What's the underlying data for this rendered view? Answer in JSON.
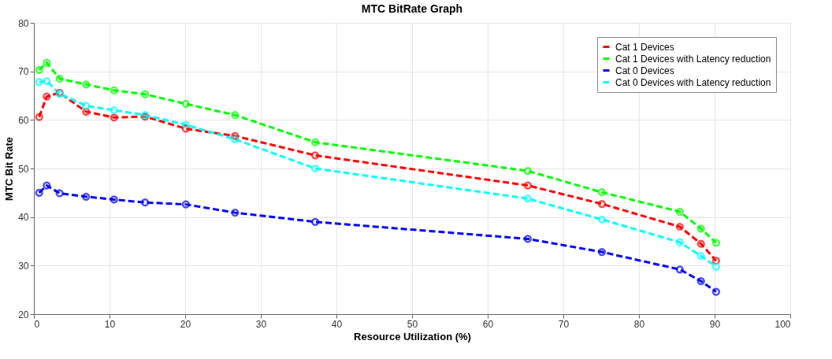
{
  "chart_data": {
    "type": "line",
    "title": "MTC BitRate Graph",
    "xlabel": "Resource Utilization (%)",
    "ylabel": "MTC Bit Rate",
    "x": [
      0.7,
      1.7,
      3.4,
      6.9,
      10.6,
      14.7,
      20.1,
      26.6,
      37.2,
      65.3,
      75.1,
      85.4,
      88.2,
      90.2
    ],
    "series": [
      {
        "name": "Cat 1 Devices",
        "color": "#ff0000",
        "values": [
          60.6,
          64.8,
          65.6,
          61.7,
          60.5,
          60.7,
          58.2,
          56.7,
          52.7,
          46.5,
          42.7,
          38.0,
          34.5,
          31.0
        ]
      },
      {
        "name": "Cat 1 Devices with Latency reduction",
        "color": "#00ff00",
        "values": [
          70.3,
          71.8,
          68.5,
          67.3,
          66.1,
          65.3,
          63.3,
          61.0,
          55.4,
          49.5,
          45.1,
          41.1,
          37.6,
          34.7
        ]
      },
      {
        "name": "Cat 0 Devices",
        "color": "#0000ff",
        "values": [
          45.0,
          46.5,
          44.9,
          44.2,
          43.6,
          43.0,
          42.6,
          40.9,
          39.0,
          35.5,
          32.8,
          29.2,
          26.8,
          24.6
        ]
      },
      {
        "name": "Cat 0 Devices with Latency reduction",
        "color": "#00ffff",
        "values": [
          67.8,
          68.0,
          65.4,
          62.9,
          62.0,
          61.0,
          59.0,
          56.0,
          50.0,
          43.8,
          39.5,
          34.8,
          32.0,
          29.8
        ]
      }
    ],
    "xlim": [
      0,
      100
    ],
    "xticks": [
      0,
      10,
      20,
      30,
      40,
      50,
      60,
      70,
      80,
      90,
      100
    ],
    "ylim": [
      20,
      80
    ],
    "yticks": [
      20,
      30,
      40,
      50,
      60,
      70,
      80
    ],
    "grid": true,
    "legend": "top right",
    "marker": "circle",
    "line_style": "dashed"
  }
}
